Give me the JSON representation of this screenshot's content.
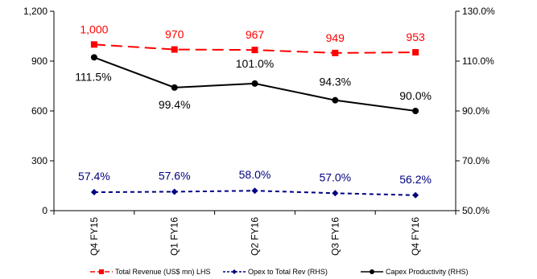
{
  "chart_data": {
    "type": "line",
    "categories": [
      "Q4 FY15",
      "Q1 FY16",
      "Q2 FY16",
      "Q3 FY16",
      "Q4 FY16"
    ],
    "left_axis": {
      "min": 0,
      "max": 1200,
      "ticks": [
        "0",
        "300",
        "600",
        "900",
        "1,200"
      ]
    },
    "right_axis": {
      "min": 50,
      "max": 130,
      "ticks": [
        "50.0%",
        "70.0%",
        "90.0%",
        "110.0%",
        "130.0%"
      ]
    },
    "grid": false,
    "legend_position": "bottom",
    "series": [
      {
        "name": "Total Revenue (US$ mn) LHS",
        "axis": "left",
        "values": [
          1000,
          970,
          967,
          949,
          953
        ],
        "labels": [
          "1,000",
          "970",
          "967",
          "949",
          "953"
        ],
        "color": "#ff0000",
        "marker": "square",
        "dash": "long"
      },
      {
        "name": "Opex to Total Rev (RHS)",
        "axis": "right",
        "values": [
          57.4,
          57.6,
          58.0,
          57.0,
          56.2
        ],
        "labels": [
          "57.4%",
          "57.6%",
          "58.0%",
          "57.0%",
          "56.2%"
        ],
        "color": "#000080",
        "marker": "diamond",
        "dash": "short"
      },
      {
        "name": "Capex Productivity (RHS)",
        "axis": "right",
        "values": [
          111.5,
          99.4,
          101.0,
          94.3,
          90.0
        ],
        "labels": [
          "111.5%",
          "99.4%",
          "101.0%",
          "94.3%",
          "90.0%"
        ],
        "color": "#000000",
        "marker": "circle",
        "dash": "solid"
      }
    ]
  }
}
